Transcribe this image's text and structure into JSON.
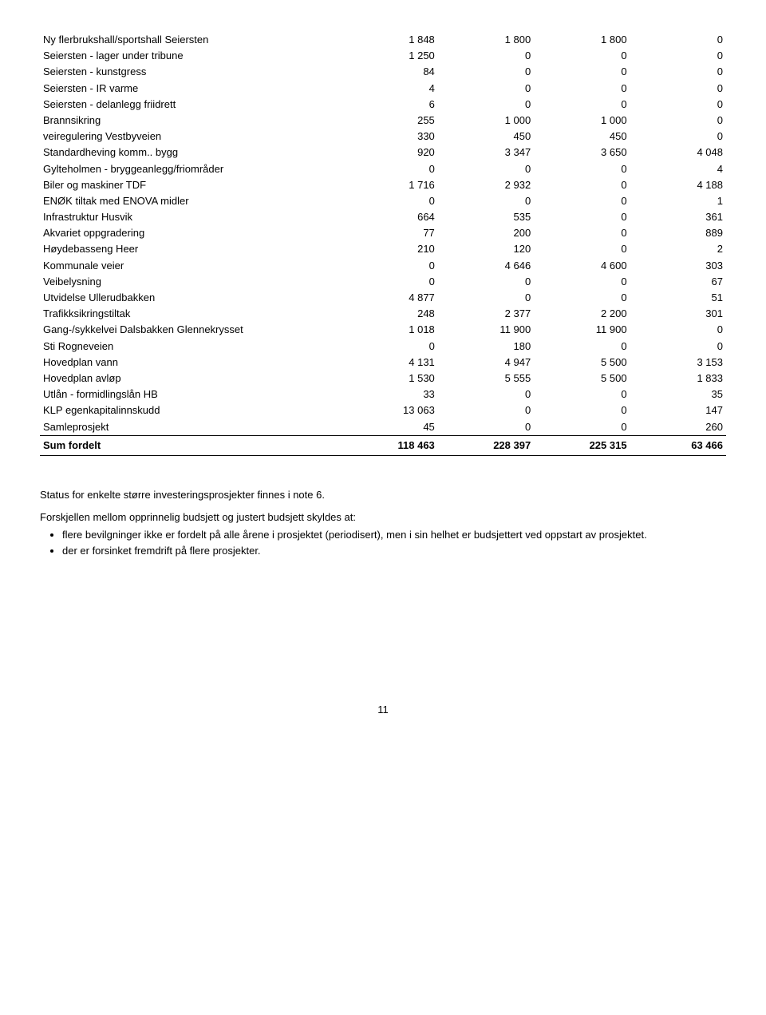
{
  "table": {
    "rows": [
      {
        "label": "Ny flerbrukshall/sportshall Seiersten",
        "c1": "1 848",
        "c2": "1 800",
        "c3": "1 800",
        "c4": "0"
      },
      {
        "label": "Seiersten - lager under tribune",
        "c1": "1 250",
        "c2": "0",
        "c3": "0",
        "c4": "0"
      },
      {
        "label": "Seiersten - kunstgress",
        "c1": "84",
        "c2": "0",
        "c3": "0",
        "c4": "0"
      },
      {
        "label": "Seiersten - IR varme",
        "c1": "4",
        "c2": "0",
        "c3": "0",
        "c4": "0"
      },
      {
        "label": "Seiersten - delanlegg friidrett",
        "c1": "6",
        "c2": "0",
        "c3": "0",
        "c4": "0"
      },
      {
        "label": "Brannsikring",
        "c1": "255",
        "c2": "1 000",
        "c3": "1 000",
        "c4": "0"
      },
      {
        "label": "veiregulering Vestbyveien",
        "c1": "330",
        "c2": "450",
        "c3": "450",
        "c4": "0"
      },
      {
        "label": "Standardheving komm.. bygg",
        "c1": "920",
        "c2": "3 347",
        "c3": "3 650",
        "c4": "4 048"
      },
      {
        "label": "Gylteholmen - bryggeanlegg/friområder",
        "c1": "0",
        "c2": "0",
        "c3": "0",
        "c4": "4"
      },
      {
        "label": "Biler og maskiner TDF",
        "c1": "1 716",
        "c2": "2 932",
        "c3": "0",
        "c4": "4 188"
      },
      {
        "label": "ENØK tiltak med ENOVA midler",
        "c1": "0",
        "c2": "0",
        "c3": "0",
        "c4": "1"
      },
      {
        "label": "Infrastruktur Husvik",
        "c1": "664",
        "c2": "535",
        "c3": "0",
        "c4": "361"
      },
      {
        "label": "Akvariet oppgradering",
        "c1": "77",
        "c2": "200",
        "c3": "0",
        "c4": "889"
      },
      {
        "label": "Høydebasseng  Heer",
        "c1": "210",
        "c2": "120",
        "c3": "0",
        "c4": "2"
      },
      {
        "label": "Kommunale veier",
        "c1": "0",
        "c2": "4 646",
        "c3": "4 600",
        "c4": "303"
      },
      {
        "label": "Veibelysning",
        "c1": "0",
        "c2": "0",
        "c3": "0",
        "c4": "67"
      },
      {
        "label": "Utvidelse Ullerudbakken",
        "c1": "4 877",
        "c2": "0",
        "c3": "0",
        "c4": "51"
      },
      {
        "label": "Trafikksikringstiltak",
        "c1": "248",
        "c2": "2 377",
        "c3": "2 200",
        "c4": "301"
      },
      {
        "label": "Gang-/sykkelvei Dalsbakken Glennekrysset",
        "c1": "1 018",
        "c2": "11 900",
        "c3": "11 900",
        "c4": "0"
      },
      {
        "label": "Sti Rogneveien",
        "c1": "0",
        "c2": "180",
        "c3": "0",
        "c4": "0"
      },
      {
        "label": "Hovedplan vann",
        "c1": "4 131",
        "c2": "4 947",
        "c3": "5 500",
        "c4": "3 153"
      },
      {
        "label": "Hovedplan avløp",
        "c1": "1 530",
        "c2": "5 555",
        "c3": "5 500",
        "c4": "1 833"
      },
      {
        "label": "Utlån - formidlingslån HB",
        "c1": "33",
        "c2": "0",
        "c3": "0",
        "c4": "35"
      },
      {
        "label": "KLP egenkapitalinnskudd",
        "c1": "13 063",
        "c2": "0",
        "c3": "0",
        "c4": "147"
      },
      {
        "label": "Samleprosjekt",
        "c1": "45",
        "c2": "0",
        "c3": "0",
        "c4": "260",
        "underline": true
      }
    ],
    "sum": {
      "label": "Sum fordelt",
      "c1": "118 463",
      "c2": "228 397",
      "c3": "225 315",
      "c4": "63 466"
    }
  },
  "text": {
    "p1": "Status for enkelte større investeringsprosjekter finnes i note 6.",
    "p2": "Forskjellen mellom opprinnelig budsjett og justert budsjett skyldes at:",
    "li1": "flere bevilgninger ikke er fordelt på alle årene i prosjektet (periodisert), men i sin helhet er budsjettert ved oppstart av prosjektet.",
    "li2": "der er forsinket fremdrift på flere prosjekter."
  },
  "page_number": "11"
}
